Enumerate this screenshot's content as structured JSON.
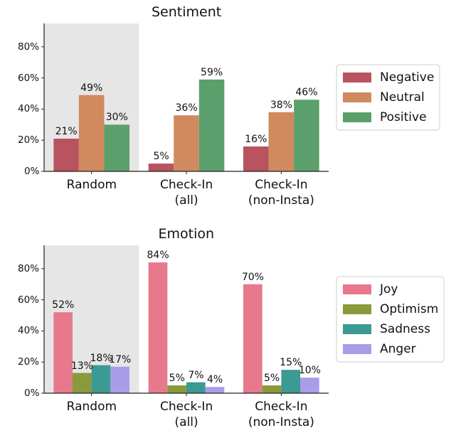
{
  "chart_data": [
    {
      "type": "bar",
      "title": "Sentiment",
      "categories": [
        "Random",
        "Check-In\n(all)",
        "Check-In\n(non-Insta)"
      ],
      "highlight_category": "Random",
      "series": [
        {
          "name": "Negative",
          "color": "#b9535f",
          "values": [
            21,
            5,
            16
          ],
          "value_labels": [
            "21%",
            "5%",
            "16%"
          ]
        },
        {
          "name": "Neutral",
          "color": "#d08a5e",
          "values": [
            49,
            36,
            38
          ],
          "value_labels": [
            "49%",
            "36%",
            "38%"
          ]
        },
        {
          "name": "Positive",
          "color": "#5ba06c",
          "values": [
            30,
            59,
            46
          ],
          "value_labels": [
            "30%",
            "59%",
            "46%"
          ]
        }
      ],
      "ylim": [
        0,
        95
      ],
      "yticks": [
        {
          "value": 0,
          "label": "0%"
        },
        {
          "value": 20,
          "label": "20%"
        },
        {
          "value": 40,
          "label": "40%"
        },
        {
          "value": 60,
          "label": "60%"
        },
        {
          "value": 80,
          "label": "80%"
        }
      ],
      "legend": "right"
    },
    {
      "type": "bar",
      "title": "Emotion",
      "categories": [
        "Random",
        "Check-In\n(all)",
        "Check-In\n(non-Insta)"
      ],
      "highlight_category": "Random",
      "series": [
        {
          "name": "Joy",
          "color": "#e8798c",
          "values": [
            52,
            84,
            70
          ],
          "value_labels": [
            "52%",
            "84%",
            "70%"
          ]
        },
        {
          "name": "Optimism",
          "color": "#8a9a3b",
          "values": [
            13,
            5,
            5
          ],
          "value_labels": [
            "13%",
            "5%",
            "5%"
          ]
        },
        {
          "name": "Sadness",
          "color": "#3b9a93",
          "values": [
            18,
            7,
            15
          ],
          "value_labels": [
            "18%",
            "7%",
            "15%"
          ]
        },
        {
          "name": "Anger",
          "color": "#a99ce8",
          "values": [
            17,
            4,
            10
          ],
          "value_labels": [
            "17%",
            "4%",
            "10%"
          ]
        }
      ],
      "ylim": [
        0,
        95
      ],
      "yticks": [
        {
          "value": 0,
          "label": "0%"
        },
        {
          "value": 20,
          "label": "20%"
        },
        {
          "value": 40,
          "label": "40%"
        },
        {
          "value": 60,
          "label": "60%"
        },
        {
          "value": 80,
          "label": "80%"
        }
      ],
      "legend": "right"
    }
  ]
}
